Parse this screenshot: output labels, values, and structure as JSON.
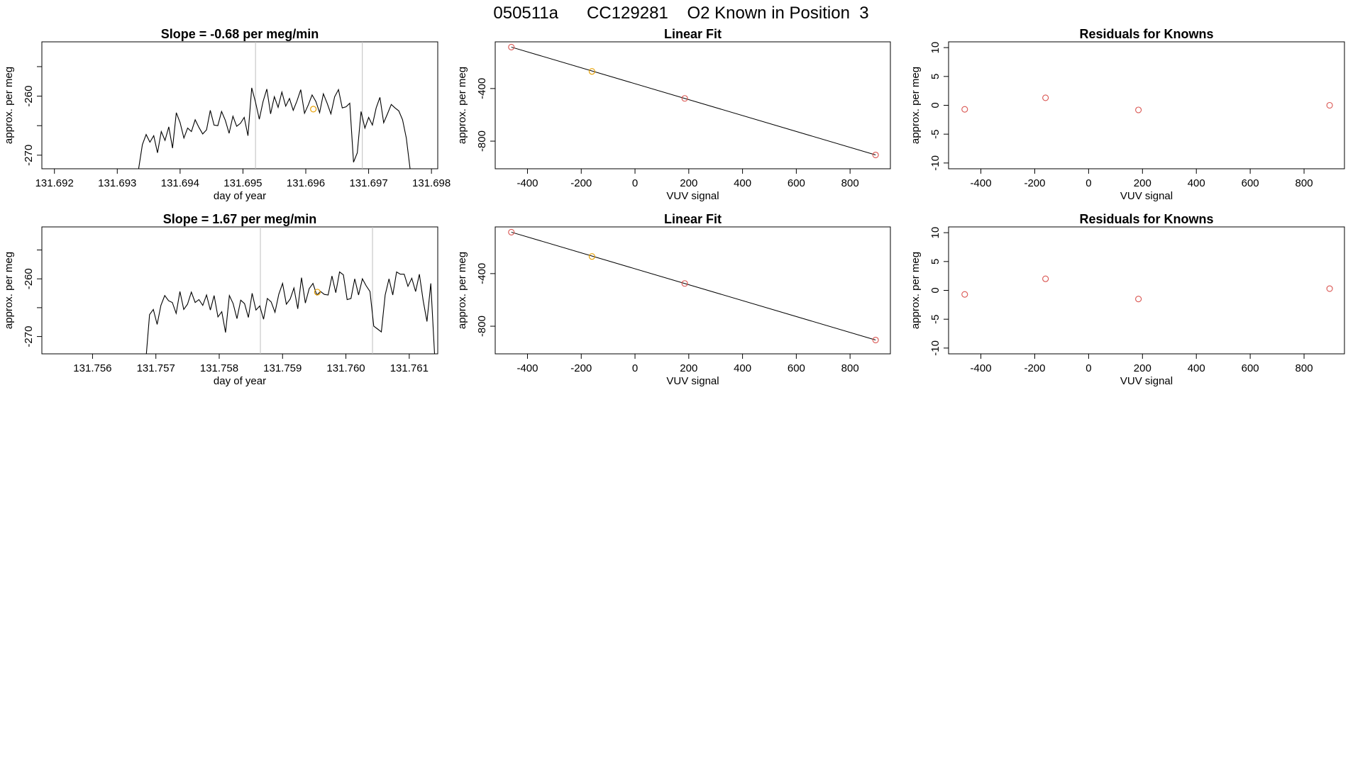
{
  "page_title": "050511a      CC129281    O2 Known in Position  3",
  "colors": {
    "trace": "#000000",
    "gray_line": "#bebebe",
    "known_point": "#d9534f",
    "highlight_point": "#e69f00",
    "fit_line": "#000000"
  },
  "chart_data": [
    {
      "id": "r1-trace",
      "type": "line",
      "title": "Slope =  -0.68  per meg/min",
      "xlabel": "day of year",
      "ylabel": "approx. per meg",
      "xlim": [
        131.6918,
        131.6981
      ],
      "ylim": [
        -272.3,
        -250.8
      ],
      "xticks": [
        "131.692",
        "131.693",
        "131.694",
        "131.695",
        "131.696",
        "131.697",
        "131.698"
      ],
      "xtick_values": [
        131.692,
        131.693,
        131.694,
        131.695,
        131.696,
        131.697,
        131.698
      ],
      "yticks": [
        "-270",
        "-260"
      ],
      "ytick_values": [
        -270,
        -260
      ],
      "vlines": [
        131.6952,
        131.6969
      ],
      "highlight": {
        "x": 131.69612,
        "y": -262.2
      },
      "x": [
        131.6918,
        131.6921,
        131.6924,
        131.6927,
        131.693,
        131.69334,
        131.6934,
        131.69346,
        131.69352,
        131.69358,
        131.69364,
        131.6937,
        131.69376,
        131.69382,
        131.69388,
        131.69394,
        131.694,
        131.69406,
        131.69412,
        131.69418,
        131.69424,
        131.6943,
        131.69436,
        131.69442,
        131.69448,
        131.69454,
        131.6946,
        131.69466,
        131.69472,
        131.69478,
        131.69484,
        131.6949,
        131.69496,
        131.69502,
        131.69508,
        131.69514,
        131.6952,
        131.69526,
        131.69532,
        131.69538,
        131.69544,
        131.6955,
        131.69556,
        131.69562,
        131.69568,
        131.69574,
        131.6958,
        131.69586,
        131.69592,
        131.69598,
        131.69604,
        131.6961,
        131.69616,
        131.69622,
        131.69628,
        131.69634,
        131.6964,
        131.69646,
        131.69652,
        131.69658,
        131.69664,
        131.6967,
        131.69676,
        131.69682,
        131.69688,
        131.69694,
        131.697,
        131.69706,
        131.69712,
        131.69718,
        131.69724,
        131.6973,
        131.69736,
        131.69742,
        131.69748,
        131.69754,
        131.6976,
        131.69766,
        131.69772,
        131.69778
      ],
      "y": [
        -272.3,
        -272.3,
        -272.3,
        -272.3,
        -272.3,
        -272.3,
        -268.2,
        -266.5,
        -267.8,
        -266.7,
        -269.6,
        -266.0,
        -267.5,
        -265.2,
        -268.8,
        -262.8,
        -264.5,
        -267.1,
        -265.4,
        -266.0,
        -264.0,
        -265.3,
        -266.4,
        -265.7,
        -262.4,
        -264.9,
        -265.0,
        -262.6,
        -264.1,
        -266.3,
        -263.4,
        -265.1,
        -264.6,
        -263.6,
        -266.7,
        -258.6,
        -261.0,
        -263.9,
        -260.9,
        -258.8,
        -263.0,
        -260.1,
        -261.9,
        -259.3,
        -261.7,
        -260.4,
        -262.4,
        -260.8,
        -258.9,
        -262.9,
        -261.5,
        -259.8,
        -260.9,
        -262.8,
        -259.6,
        -261.2,
        -263.0,
        -260.1,
        -258.9,
        -262.0,
        -261.8,
        -261.2,
        -271.2,
        -269.6,
        -262.6,
        -265.4,
        -263.6,
        -264.9,
        -262.0,
        -260.2,
        -264.5,
        -263.0,
        -261.4,
        -262.0,
        -262.5,
        -264.0,
        -267.1,
        -272.3,
        -272.3,
        -272.3
      ]
    },
    {
      "id": "r1-fit",
      "type": "scatter",
      "title": "Linear Fit",
      "xlabel": "VUV signal",
      "ylabel": "approx. per meg",
      "xlim": [
        -520,
        950
      ],
      "ylim": [
        -1010,
        -45
      ],
      "xticks": [
        "-400",
        "-200",
        "0",
        "200",
        "400",
        "600",
        "800"
      ],
      "xtick_values": [
        -400,
        -200,
        0,
        200,
        400,
        600,
        800
      ],
      "yticks": [
        "-800",
        "-400"
      ],
      "ytick_values": [
        -800,
        -400
      ],
      "points": [
        {
          "x": -460,
          "y": -85,
          "highlight": false
        },
        {
          "x": -160,
          "y": -270,
          "highlight": true
        },
        {
          "x": 185,
          "y": -475,
          "highlight": false
        },
        {
          "x": 895,
          "y": -905,
          "highlight": false
        }
      ],
      "fit_line": {
        "x": [
          -460,
          895
        ],
        "y": [
          -85,
          -905
        ]
      }
    },
    {
      "id": "r1-resid",
      "type": "scatter",
      "title": "Residuals for Knowns",
      "xlabel": "VUV signal",
      "ylabel": "approx. per meg",
      "xlim": [
        -520,
        950
      ],
      "ylim": [
        -11,
        11
      ],
      "xticks": [
        "-400",
        "-200",
        "0",
        "200",
        "400",
        "600",
        "800"
      ],
      "xtick_values": [
        -400,
        -200,
        0,
        200,
        400,
        600,
        800
      ],
      "yticks": [
        "-10",
        "-5",
        "0",
        "5",
        "10"
      ],
      "ytick_values": [
        -10,
        -5,
        0,
        5,
        10
      ],
      "points": [
        {
          "x": -460,
          "y": -0.7,
          "highlight": false
        },
        {
          "x": -160,
          "y": 1.3,
          "highlight": false
        },
        {
          "x": 185,
          "y": -0.8,
          "highlight": false
        },
        {
          "x": 895,
          "y": 0.0,
          "highlight": false
        }
      ]
    },
    {
      "id": "r2-trace",
      "type": "line",
      "title": "Slope =  1.67  per meg/min",
      "xlabel": "day of year",
      "ylabel": "approx. per meg",
      "xlim": [
        131.7552,
        131.76145
      ],
      "ylim": [
        -273,
        -251
      ],
      "xticks": [
        "131.756",
        "131.757",
        "131.758",
        "131.759",
        "131.760",
        "131.761"
      ],
      "xtick_values": [
        131.756,
        131.757,
        131.758,
        131.759,
        131.76,
        131.761
      ],
      "yticks": [
        "-270",
        "-260"
      ],
      "ytick_values": [
        -270,
        -260
      ],
      "vlines": [
        131.75865,
        131.76042
      ],
      "highlight": {
        "x": 131.75955,
        "y": -262.3
      },
      "x": [
        131.7552,
        131.7555,
        131.7558,
        131.7561,
        131.7564,
        131.7567,
        131.75685,
        131.7569,
        131.75696,
        131.75702,
        131.75708,
        131.75714,
        131.7572,
        131.75726,
        131.75732,
        131.75738,
        131.75744,
        131.7575,
        131.75756,
        131.75762,
        131.75768,
        131.75774,
        131.7578,
        131.75786,
        131.75792,
        131.75798,
        131.75804,
        131.7581,
        131.75816,
        131.75822,
        131.75828,
        131.75834,
        131.7584,
        131.75846,
        131.75852,
        131.75858,
        131.75864,
        131.7587,
        131.75876,
        131.75882,
        131.75888,
        131.75894,
        131.759,
        131.75906,
        131.75912,
        131.75918,
        131.75924,
        131.7593,
        131.75936,
        131.75942,
        131.75948,
        131.75954,
        131.7596,
        131.75966,
        131.75972,
        131.75978,
        131.75984,
        131.7599,
        131.75996,
        131.76002,
        131.76008,
        131.76014,
        131.7602,
        131.76026,
        131.76032,
        131.76038,
        131.76044,
        131.7605,
        131.76056,
        131.76062,
        131.76068,
        131.76074,
        131.7608,
        131.76086,
        131.76092,
        131.76098,
        131.76104,
        131.7611,
        131.76116,
        131.76122,
        131.76128,
        131.76134,
        131.7614,
        131.76145
      ],
      "y": [
        -273,
        -273,
        -273,
        -273,
        -273,
        -273,
        -273,
        -266.2,
        -265.3,
        -267.9,
        -264.6,
        -262.9,
        -263.8,
        -264.1,
        -266.0,
        -262.2,
        -265.3,
        -264.4,
        -262.3,
        -264.1,
        -263.6,
        -264.6,
        -262.8,
        -265.4,
        -262.9,
        -266.6,
        -265.7,
        -269.3,
        -262.9,
        -264.3,
        -266.9,
        -263.7,
        -264.3,
        -266.7,
        -262.5,
        -265.4,
        -264.7,
        -267.0,
        -263.4,
        -264.0,
        -265.8,
        -262.7,
        -260.8,
        -264.4,
        -263.5,
        -261.6,
        -265.2,
        -259.8,
        -264.2,
        -261.7,
        -260.8,
        -262.8,
        -262.2,
        -262.7,
        -262.8,
        -259.5,
        -262.4,
        -258.8,
        -259.3,
        -263.6,
        -263.4,
        -260.0,
        -262.8,
        -260.0,
        -261.2,
        -262.2,
        -268.2,
        -268.7,
        -269.2,
        -262.8,
        -260.0,
        -262.8,
        -258.8,
        -259.2,
        -259.2,
        -261.3,
        -259.9,
        -262.2,
        -259.2,
        -263.8,
        -267.4,
        -260.8,
        -273,
        -273
      ]
    },
    {
      "id": "r2-fit",
      "type": "scatter",
      "title": "Linear Fit",
      "xlabel": "VUV signal",
      "ylabel": "approx. per meg",
      "xlim": [
        -520,
        950
      ],
      "ylim": [
        -1010,
        -45
      ],
      "xticks": [
        "-400",
        "-200",
        "0",
        "200",
        "400",
        "600",
        "800"
      ],
      "xtick_values": [
        -400,
        -200,
        0,
        200,
        400,
        600,
        800
      ],
      "yticks": [
        "-800",
        "-400"
      ],
      "ytick_values": [
        -800,
        -400
      ],
      "points": [
        {
          "x": -460,
          "y": -85,
          "highlight": false
        },
        {
          "x": -160,
          "y": -270,
          "highlight": true
        },
        {
          "x": 185,
          "y": -475,
          "highlight": false
        },
        {
          "x": 895,
          "y": -905,
          "highlight": false
        }
      ],
      "fit_line": {
        "x": [
          -460,
          895
        ],
        "y": [
          -85,
          -905
        ]
      }
    },
    {
      "id": "r2-resid",
      "type": "scatter",
      "title": "Residuals for Knowns",
      "xlabel": "VUV signal",
      "ylabel": "approx. per meg",
      "xlim": [
        -520,
        950
      ],
      "ylim": [
        -11,
        11
      ],
      "xticks": [
        "-400",
        "-200",
        "0",
        "200",
        "400",
        "600",
        "800"
      ],
      "xtick_values": [
        -400,
        -200,
        0,
        200,
        400,
        600,
        800
      ],
      "yticks": [
        "-10",
        "-5",
        "0",
        "5",
        "10"
      ],
      "ytick_values": [
        -10,
        -5,
        0,
        5,
        10
      ],
      "points": [
        {
          "x": -460,
          "y": -0.7,
          "highlight": false
        },
        {
          "x": -160,
          "y": 2.0,
          "highlight": false
        },
        {
          "x": 185,
          "y": -1.5,
          "highlight": false
        },
        {
          "x": 895,
          "y": 0.3,
          "highlight": false
        }
      ]
    }
  ]
}
